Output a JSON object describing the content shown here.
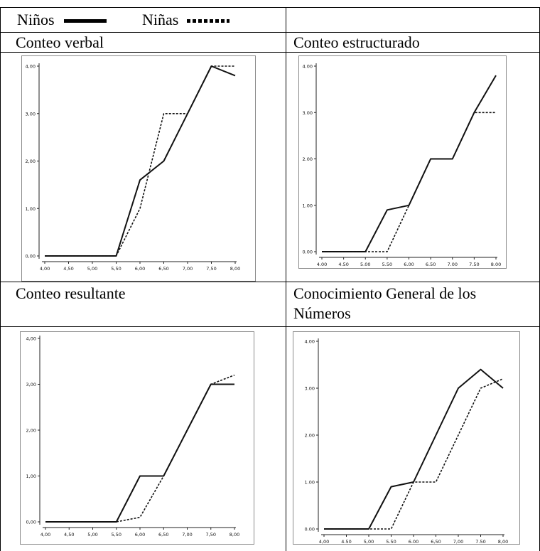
{
  "legend": {
    "boys_label": "Niños",
    "girls_label": "Niñas"
  },
  "panels": [
    {
      "title": "Conteo verbal"
    },
    {
      "title": "Conteo estructurado"
    },
    {
      "title": "Conteo resultante"
    },
    {
      "title_line1": "Conocimiento General de los",
      "title_line2": "Números"
    }
  ],
  "chart_data": [
    {
      "type": "line",
      "title": "Conteo verbal",
      "x": [
        4.0,
        4.5,
        5.0,
        5.5,
        6.0,
        6.5,
        7.0,
        7.5,
        8.0
      ],
      "x_tick_labels": [
        "4,00",
        "4,50",
        "5,00",
        "5,50",
        "6,00",
        "6,50",
        "7,00",
        "7,50",
        "8,00"
      ],
      "y_tick_labels": [
        "0,00",
        "1,00",
        "2,00",
        "3,00",
        "4,00"
      ],
      "xlim": [
        4.0,
        8.0
      ],
      "ylim": [
        0,
        4
      ],
      "series": [
        {
          "name": "Niños",
          "style": "solid",
          "points": [
            [
              4.0,
              0
            ],
            [
              5.5,
              0
            ],
            [
              6.0,
              1.6
            ],
            [
              6.5,
              2.0
            ],
            [
              7.5,
              4.0
            ],
            [
              8.0,
              3.8
            ]
          ]
        },
        {
          "name": "Niñas",
          "style": "dotted",
          "points": [
            [
              4.0,
              0
            ],
            [
              5.5,
              0
            ],
            [
              6.0,
              1.0
            ],
            [
              6.5,
              3.0
            ],
            [
              7.0,
              3.0
            ],
            [
              7.5,
              4.0
            ],
            [
              8.0,
              4.0
            ]
          ]
        }
      ]
    },
    {
      "type": "line",
      "title": "Conteo estructurado",
      "x": [
        4.0,
        4.5,
        5.0,
        5.5,
        6.0,
        6.5,
        7.0,
        7.5,
        8.0
      ],
      "x_tick_labels": [
        "4.00",
        "4.50",
        "5.00",
        "5.50",
        "6.00",
        "6.50",
        "7.00",
        "7.50",
        "8.00"
      ],
      "y_tick_labels": [
        "0.00",
        "1.00",
        "2.00",
        "3.00",
        "4.00"
      ],
      "xlim": [
        4.0,
        8.0
      ],
      "ylim": [
        0,
        4
      ],
      "series": [
        {
          "name": "Niños",
          "style": "solid",
          "points": [
            [
              4.0,
              0
            ],
            [
              5.0,
              0
            ],
            [
              5.5,
              0.9
            ],
            [
              6.0,
              1.0
            ],
            [
              6.5,
              2.0
            ],
            [
              7.0,
              2.0
            ],
            [
              7.5,
              3.0
            ],
            [
              8.0,
              3.8
            ]
          ]
        },
        {
          "name": "Niñas",
          "style": "dotted",
          "points": [
            [
              4.0,
              0
            ],
            [
              5.5,
              0
            ],
            [
              6.0,
              1.0
            ],
            [
              6.5,
              2.0
            ],
            [
              7.0,
              2.0
            ],
            [
              7.5,
              3.0
            ],
            [
              8.0,
              3.0
            ]
          ]
        }
      ]
    },
    {
      "type": "line",
      "title": "Conteo resultante",
      "x": [
        4.0,
        4.5,
        5.0,
        5.5,
        6.0,
        6.5,
        7.0,
        7.5,
        8.0
      ],
      "x_tick_labels": [
        "4,00",
        "4,50",
        "5,00",
        "5,50",
        "6,00",
        "6,50",
        "7,00",
        "7,50",
        "8,00"
      ],
      "y_tick_labels": [
        "0,00",
        "1,00",
        "2,00",
        "3,00",
        "4,00"
      ],
      "xlim": [
        4.0,
        8.0
      ],
      "ylim": [
        0,
        4
      ],
      "series": [
        {
          "name": "Niños",
          "style": "solid",
          "points": [
            [
              4.0,
              0
            ],
            [
              5.5,
              0
            ],
            [
              6.0,
              1.0
            ],
            [
              6.5,
              1.0
            ],
            [
              7.0,
              2.0
            ],
            [
              7.5,
              3.0
            ],
            [
              8.0,
              3.0
            ]
          ]
        },
        {
          "name": "Niñas",
          "style": "dotted",
          "points": [
            [
              4.0,
              0
            ],
            [
              5.5,
              0
            ],
            [
              6.0,
              0.1
            ],
            [
              6.5,
              1.0
            ],
            [
              7.0,
              2.0
            ],
            [
              7.5,
              3.0
            ],
            [
              8.0,
              3.2
            ]
          ]
        }
      ]
    },
    {
      "type": "line",
      "title": "Conocimiento General de los Números",
      "x": [
        4.0,
        4.5,
        5.0,
        5.5,
        6.0,
        6.5,
        7.0,
        7.5,
        8.0
      ],
      "x_tick_labels": [
        "4,00",
        "4.50",
        "5,00",
        "5.50",
        "6.00",
        "6,50",
        "7,00",
        "7.50",
        "8,00"
      ],
      "y_tick_labels": [
        "0.00",
        "1.00",
        "2.00",
        "3.00",
        "4.00"
      ],
      "xlim": [
        4.0,
        8.0
      ],
      "ylim": [
        0,
        4
      ],
      "series": [
        {
          "name": "Niños",
          "style": "solid",
          "points": [
            [
              4.0,
              0
            ],
            [
              5.0,
              0
            ],
            [
              5.5,
              0.9
            ],
            [
              6.0,
              1.0
            ],
            [
              6.5,
              2.0
            ],
            [
              7.0,
              3.0
            ],
            [
              7.5,
              3.4
            ],
            [
              8.0,
              3.0
            ]
          ]
        },
        {
          "name": "Niñas",
          "style": "dotted",
          "points": [
            [
              4.0,
              0
            ],
            [
              5.5,
              0
            ],
            [
              6.0,
              1.0
            ],
            [
              6.5,
              1.0
            ],
            [
              7.0,
              2.0
            ],
            [
              7.5,
              3.0
            ],
            [
              8.0,
              3.2
            ]
          ]
        }
      ]
    }
  ]
}
